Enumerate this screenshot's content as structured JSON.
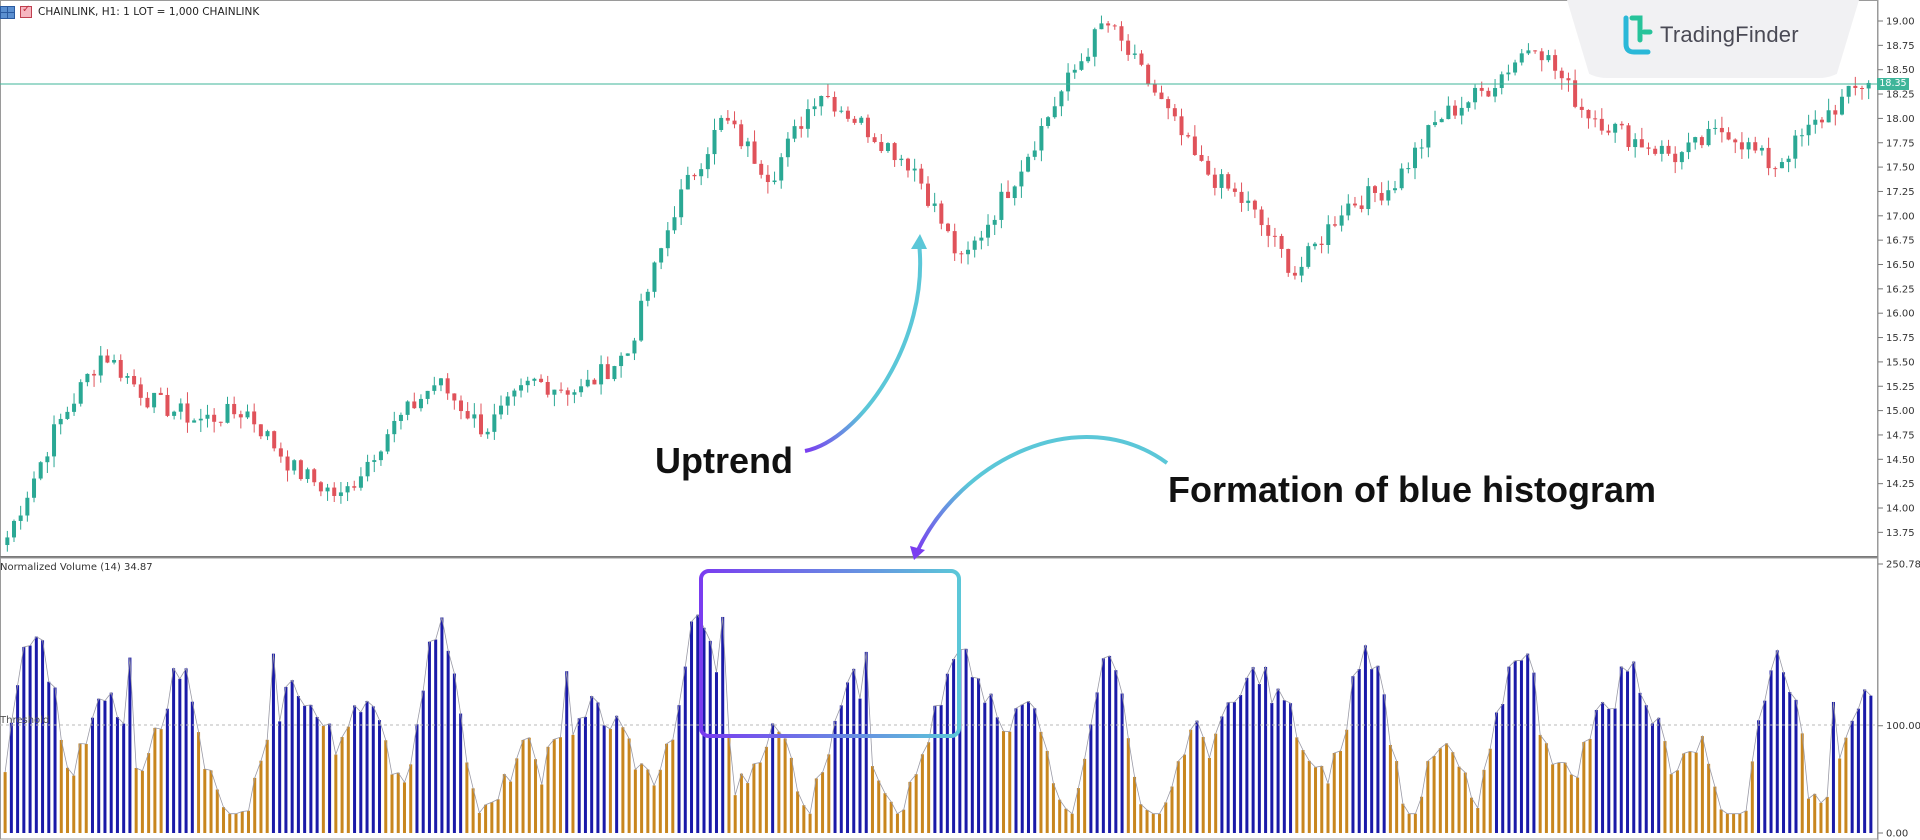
{
  "window": {
    "symbol_info": "CHAINLINK, H1:  1 LOT = 1,000 CHAINLINK"
  },
  "brand": {
    "name": "TradingFinder",
    "logo_colors": [
      "#3cc3e0",
      "#27c39a"
    ]
  },
  "price_axis": {
    "labels": [
      "19.00",
      "18.75",
      "18.50",
      "18.25",
      "18.00",
      "17.75",
      "17.50",
      "17.25",
      "17.00",
      "16.75",
      "16.50",
      "16.25",
      "16.00",
      "15.75",
      "15.50",
      "15.25",
      "15.00",
      "14.75",
      "14.50",
      "14.25",
      "14.00",
      "13.75"
    ],
    "current_price": "18.35"
  },
  "indicator": {
    "title": "Normalized Volume (14) 34.87",
    "threshold_label": "Threshold",
    "axis_labels": [
      "250.78",
      "100.00",
      "0.00"
    ],
    "max": 250.78,
    "threshold": 100,
    "above_color": "#1a1aa8",
    "below_color": "#c8861e"
  },
  "annotations": {
    "uptrend": "Uptrend",
    "blue_histogram": "Formation of blue histogram"
  },
  "colors": {
    "bull_candle": "#2aa894",
    "bear_candle": "#e0525a",
    "price_line": "#3fb59a",
    "highlight_box_start": "#7a3cf0",
    "highlight_box_end": "#5bc7d8"
  },
  "chart_data": [
    {
      "type": "candlestick",
      "title": "CHAINLINK, H1",
      "ylim": [
        13.6,
        19.1
      ],
      "y_ticks": [
        19.0,
        18.75,
        18.5,
        18.25,
        18.0,
        17.75,
        17.5,
        17.25,
        17.0,
        16.75,
        16.5,
        16.25,
        16.0,
        15.75,
        15.5,
        15.25,
        15.0,
        14.75,
        14.5,
        14.25,
        14.0,
        13.75
      ],
      "current_price": 18.35,
      "key_closes": [
        13.7,
        14.8,
        15.6,
        15.1,
        14.9,
        15.0,
        14.4,
        14.1,
        14.8,
        15.3,
        14.8,
        15.3,
        15.2,
        15.6,
        17.1,
        18.0,
        17.4,
        18.3,
        17.9,
        17.5,
        16.5,
        17.3,
        18.2,
        19.0,
        18.3,
        17.5,
        17.1,
        16.4,
        17.1,
        17.3,
        18.0,
        18.3,
        18.8,
        18.1,
        17.8,
        17.6,
        17.9,
        17.5,
        18.0,
        18.4
      ],
      "annotation": "Uptrend"
    },
    {
      "type": "bar",
      "title": "Normalized Volume (14) 34.87",
      "ylim": [
        0,
        250.78
      ],
      "threshold": 100,
      "series_colors": {
        "above_threshold": "blue",
        "below_threshold": "orange"
      },
      "annotation": "Formation of blue histogram"
    }
  ]
}
